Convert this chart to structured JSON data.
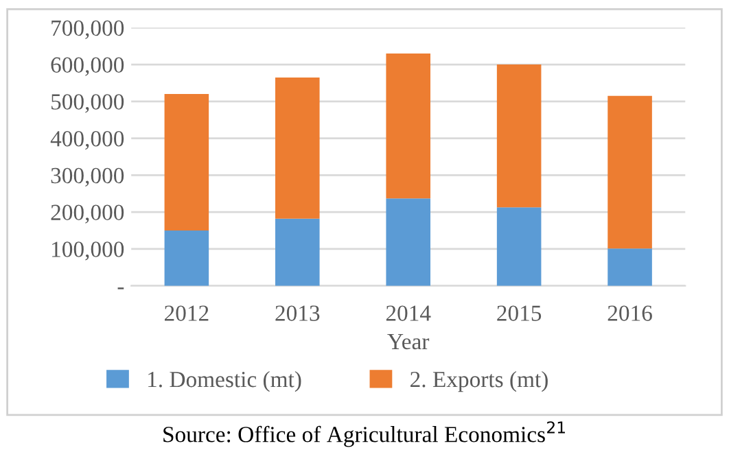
{
  "chart_data": {
    "type": "bar",
    "stacked": true,
    "xlabel": "Year",
    "categories": [
      "2012",
      "2013",
      "2014",
      "2015",
      "2016"
    ],
    "series": [
      {
        "name": "1. Domestic (mt)",
        "color": "#5b9bd5",
        "values": [
          150000,
          182000,
          237000,
          213000,
          101000
        ]
      },
      {
        "name": "2. Exports (mt)",
        "color": "#ed7d31",
        "values": [
          370000,
          383000,
          393000,
          387000,
          414000
        ]
      }
    ],
    "ylim": [
      0,
      700000
    ],
    "yticks": [
      {
        "value": 0,
        "label": "-"
      },
      {
        "value": 100000,
        "label": "100,000"
      },
      {
        "value": 200000,
        "label": "200,000"
      },
      {
        "value": 300000,
        "label": "300,000"
      },
      {
        "value": 400000,
        "label": "400,000"
      },
      {
        "value": 500000,
        "label": "500,000"
      },
      {
        "value": 600000,
        "label": "600,000"
      },
      {
        "value": 700000,
        "label": "700,000"
      }
    ],
    "grid": "y",
    "legend": "bottom",
    "annotations": [
      "Source: Office of Agricultural Economics$^{21}$"
    ]
  }
}
